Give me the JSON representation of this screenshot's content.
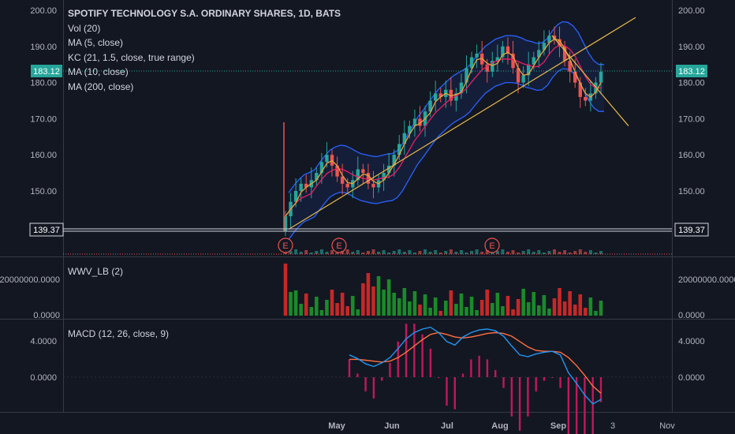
{
  "legend": {
    "title": "SPOTIFY TECHNOLOGY S.A. ORDINARY SHARES, 1D, BATS",
    "vol": "Vol (20)",
    "ma5": "MA (5, close)",
    "kc": "KC (21, 1.5, close, true range)",
    "ma10": "MA (10, close)",
    "ma200": "MA (200, close)"
  },
  "panes": {
    "wwv_label": "WWV_LB (2)",
    "macd_label": "MACD (12, 26, close, 9)"
  },
  "axis": {
    "price_ticks": [
      "200.00",
      "190.00",
      "180.00",
      "170.00",
      "160.00",
      "150.00"
    ],
    "current_price": "183.12",
    "marker_price": "139.37",
    "wwv_ticks": [
      "20000000.0000",
      "0.0000"
    ],
    "macd_ticks": [
      "4.0000",
      "0.0000"
    ],
    "time_ticks": [
      "May",
      "Jun",
      "Jul",
      "Aug",
      "Sep",
      "3",
      "Nov"
    ]
  },
  "earnings_marker": "E",
  "colors": {
    "background": "#131722",
    "up": "#26a69a",
    "down": "#ef5350",
    "kc_band": "#2962ff",
    "trendline": "#e6b84a",
    "ma5": "#e8a33c",
    "ma10": "#e91e63",
    "current_price_line": "#26a69a",
    "macd_line": "#2196f3",
    "signal_line": "#ff7043",
    "histogram": "#c2185b",
    "wwv_up": "#1b8a2a",
    "wwv_down": "#c62828"
  },
  "chart_data": {
    "type": "candlestick",
    "symbol": "SPOTIFY TECHNOLOGY S.A. ORDINARY SHARES",
    "interval": "1D",
    "exchange": "BATS",
    "price_range": [
      130,
      202
    ],
    "close_series_approx": [
      143,
      147,
      150,
      152,
      151,
      153,
      155,
      158,
      160,
      157,
      154,
      152,
      151,
      153,
      156,
      155,
      152,
      151,
      153,
      155,
      157,
      160,
      163,
      166,
      168,
      170,
      168,
      172,
      175,
      177,
      176,
      178,
      175,
      177,
      180,
      184,
      187,
      188,
      185,
      183,
      186,
      187,
      190,
      188,
      184,
      180,
      182,
      185,
      187,
      189,
      191,
      193,
      192,
      190,
      186,
      183,
      180,
      176,
      175,
      177,
      180,
      183
    ],
    "macd_series_approx": [
      2.5,
      2.1,
      1.5,
      1.2,
      1.6,
      2.2,
      3.2,
      4.3,
      5.0,
      5.4,
      5.6,
      5.0,
      4.0,
      3.6,
      4.5,
      5.0,
      5.3,
      5.4,
      5.2,
      4.6,
      3.5,
      2.5,
      2.3,
      2.6,
      2.8,
      2.9,
      2.5,
      0.5,
      -0.7,
      -2.0,
      -3.0,
      -2.5
    ],
    "signal_series_approx": [
      2.0,
      2.0,
      1.9,
      1.8,
      1.7,
      1.8,
      2.2,
      2.8,
      3.5,
      4.2,
      4.8,
      5.0,
      4.8,
      4.5,
      4.4,
      4.5,
      4.7,
      4.9,
      5.0,
      4.9,
      4.6,
      4.0,
      3.4,
      3.0,
      2.9,
      2.9,
      2.8,
      2.2,
      1.3,
      0.2,
      -1.0,
      -1.8
    ]
  }
}
